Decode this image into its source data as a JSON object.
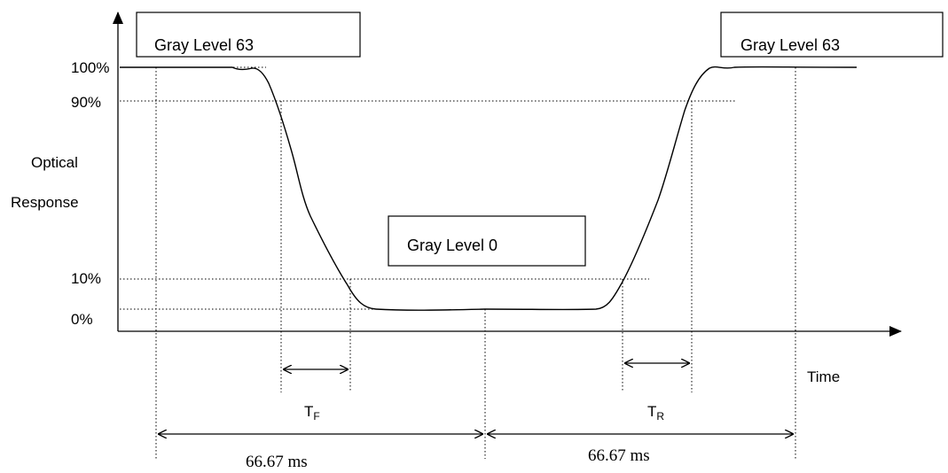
{
  "axis": {
    "y_title_line1": "Optical",
    "y_title_line2": "Response",
    "x_title": "Time"
  },
  "levels": {
    "p100": "100%",
    "p90": "90%",
    "p10": "10%",
    "p0": "0%"
  },
  "boxes": {
    "left": "Gray Level 63",
    "middle": "Gray Level 0",
    "right": "Gray Level 63"
  },
  "timing": {
    "fall_main": "T",
    "fall_sub": "F",
    "rise_main": "T",
    "rise_sub": "R",
    "period_left": "66.67 ms",
    "period_right": "66.67 ms"
  }
}
